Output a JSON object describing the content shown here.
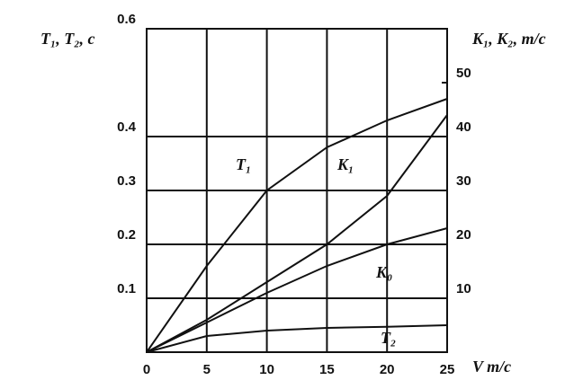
{
  "chart_data": {
    "type": "line",
    "ylabel": "T₁, T₂, c",
    "y2label": "K₁, K₂, m/c",
    "xlabel": "V m/c",
    "x": [
      0,
      5,
      10,
      15,
      20,
      25
    ],
    "series": [
      {
        "name": "T₁",
        "color": "#111111",
        "values": [
          0,
          0.16,
          0.3,
          0.38,
          0.43,
          0.47
        ]
      },
      {
        "name": "K₁",
        "color": "#111111",
        "axis": "y2",
        "values": [
          0,
          6,
          13,
          20,
          29,
          44
        ]
      },
      {
        "name": "K₀",
        "color": "#111111",
        "axis": "y2",
        "values": [
          0,
          5.5,
          11,
          16,
          20,
          23
        ]
      },
      {
        "name": "T₂",
        "color": "#111111",
        "values": [
          0,
          0.03,
          0.04,
          0.045,
          0.047,
          0.05
        ]
      }
    ],
    "xlim": [
      0,
      25
    ],
    "xticks": [
      0,
      5,
      10,
      15,
      20,
      25
    ],
    "ylim": [
      0,
      0.6
    ],
    "yticks": [
      0.1,
      0.2,
      0.3,
      0.4,
      0.6
    ],
    "y2lim": [
      0,
      60
    ],
    "y2ticks": [
      10,
      20,
      30,
      40,
      50
    ],
    "grid": true
  }
}
